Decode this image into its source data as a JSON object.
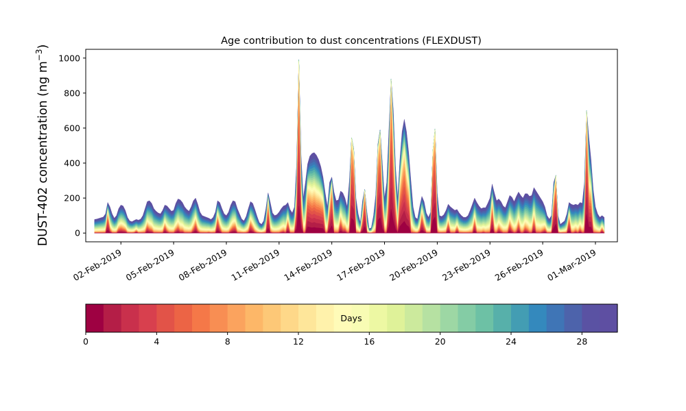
{
  "chart_data": {
    "type": "area",
    "stacked": true,
    "title": "Age contribution to dust concentrations (FLEXDUST)",
    "ylabel": "DUST-402 concentration (ng m",
    "ylabel_unit_exponent": "−3",
    "ylabel_close": ")",
    "ylim": [
      -50,
      1050
    ],
    "yticks": [
      0,
      200,
      400,
      600,
      800,
      1000
    ],
    "ytick_labels": [
      "0",
      "200",
      "400",
      "600",
      "800",
      "1000"
    ],
    "xlim": [
      "2019-01-31T00:00",
      "2019-03-02T06:00"
    ],
    "x_start": "2019-01-31T12:00",
    "x_step_hours": 3,
    "xticks": [
      "2019-02-02",
      "2019-02-05",
      "2019-02-08",
      "2019-02-11",
      "2019-02-14",
      "2019-02-17",
      "2019-02-20",
      "2019-02-23",
      "2019-02-26",
      "2019-03-01"
    ],
    "xtick_labels": [
      "02-Feb-2019",
      "05-Feb-2019",
      "08-Feb-2019",
      "11-Feb-2019",
      "14-Feb-2019",
      "17-Feb-2019",
      "20-Feb-2019",
      "23-Feb-2019",
      "26-Feb-2019",
      "01-Mar-2019"
    ],
    "colorbar": {
      "label": "Days",
      "min": 0,
      "max": 30,
      "bins": 30,
      "ticks": [
        0,
        4,
        8,
        12,
        16,
        20,
        24,
        28
      ],
      "tick_labels": [
        "0",
        "4",
        "8",
        "12",
        "16",
        "20",
        "24",
        "28"
      ],
      "colors": [
        "#9e0142",
        "#b41e47",
        "#c9304c",
        "#d8404e",
        "#e25348",
        "#ec6445",
        "#f57848",
        "#f88e53",
        "#fba35e",
        "#fdb768",
        "#fdc877",
        "#fed889",
        "#fee69a",
        "#fff2ab",
        "#fffbb8",
        "#f8fcb4",
        "#edf8a3",
        "#dff299",
        "#ccea9d",
        "#b6e1a2",
        "#9dd7a4",
        "#84cca5",
        "#6dc1a5",
        "#57b0aa",
        "#439db3",
        "#3489bd",
        "#3f75b6",
        "#4d63ab",
        "#5a52a3",
        "#5e4fa2"
      ]
    },
    "total": [
      78,
      80,
      84,
      88,
      92,
      110,
      175,
      150,
      110,
      85,
      100,
      140,
      160,
      155,
      130,
      90,
      70,
      65,
      72,
      78,
      74,
      80,
      100,
      140,
      180,
      185,
      170,
      140,
      125,
      115,
      110,
      130,
      160,
      155,
      140,
      125,
      130,
      170,
      195,
      190,
      175,
      150,
      135,
      125,
      150,
      185,
      200,
      165,
      120,
      100,
      95,
      90,
      85,
      78,
      90,
      120,
      185,
      175,
      140,
      110,
      100,
      120,
      160,
      185,
      180,
      140,
      110,
      80,
      70,
      95,
      140,
      180,
      170,
      135,
      95,
      60,
      50,
      70,
      140,
      230,
      175,
      115,
      100,
      105,
      120,
      140,
      155,
      160,
      175,
      135,
      115,
      150,
      400,
      990,
      450,
      200,
      290,
      395,
      440,
      455,
      460,
      445,
      420,
      380,
      320,
      230,
      150,
      290,
      320,
      235,
      185,
      190,
      240,
      230,
      200,
      150,
      300,
      545,
      480,
      200,
      110,
      60,
      185,
      250,
      120,
      25,
      30,
      100,
      220,
      510,
      590,
      400,
      200,
      290,
      590,
      880,
      700,
      380,
      200,
      420,
      580,
      650,
      580,
      460,
      300,
      150,
      90,
      80,
      150,
      210,
      180,
      115,
      90,
      120,
      470,
      595,
      230,
      100,
      95,
      105,
      130,
      165,
      150,
      140,
      130,
      135,
      115,
      100,
      90,
      90,
      100,
      130,
      165,
      200,
      175,
      155,
      140,
      145,
      145,
      170,
      200,
      280,
      230,
      185,
      195,
      180,
      155,
      145,
      180,
      215,
      205,
      180,
      210,
      235,
      215,
      200,
      225,
      225,
      210,
      215,
      260,
      240,
      220,
      200,
      180,
      150,
      100,
      80,
      100,
      290,
      330,
      100,
      50,
      60,
      70,
      110,
      175,
      165,
      160,
      165,
      160,
      175,
      170,
      290,
      700,
      550,
      420,
      250,
      150,
      110,
      90,
      100,
      90
    ]
  }
}
